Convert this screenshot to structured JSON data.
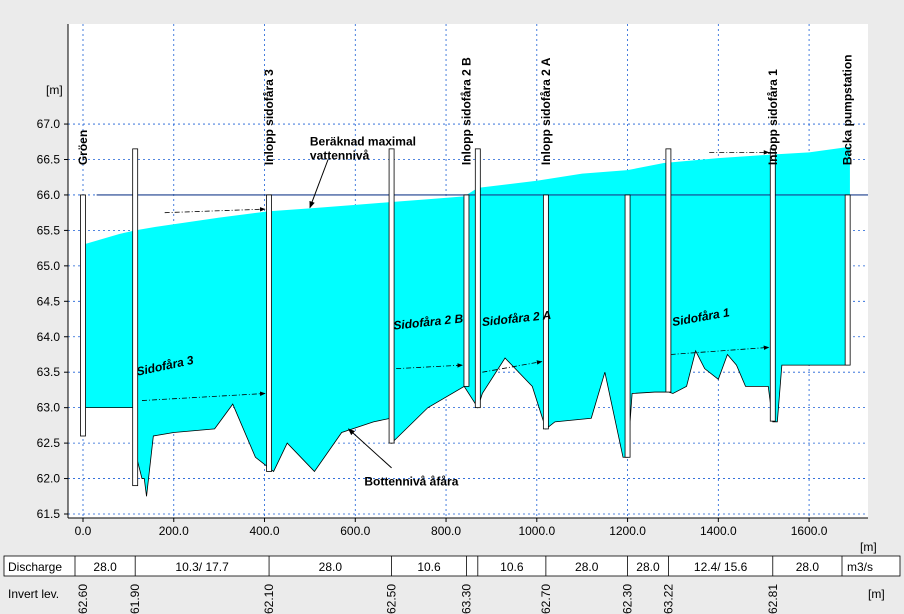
{
  "chart_data": {
    "type": "area",
    "x_unit": "[m]",
    "y_unit": "[m]",
    "xlim": [
      -30,
      1740
    ],
    "ylim": [
      61.5,
      67.0
    ],
    "x_ticks": [
      "0.0",
      "200.0",
      "400.0",
      "600.0",
      "800.0",
      "1000.0",
      "1200.0",
      "1400.0",
      "1600.0"
    ],
    "x_tick_values": [
      0,
      200,
      400,
      600,
      800,
      1000,
      1200,
      1400,
      1600
    ],
    "y_ticks": [
      "61.5",
      "62.0",
      "62.5",
      "63.0",
      "63.5",
      "64.0",
      "64.5",
      "65.0",
      "65.5",
      "66.0",
      "66.5",
      "67.0"
    ],
    "y_tick_values": [
      61.5,
      62.0,
      62.5,
      63.0,
      63.5,
      64.0,
      64.5,
      65.0,
      65.5,
      66.0,
      66.5,
      67.0
    ],
    "grid": true,
    "reference_level": 66.0,
    "water_surface": {
      "x": [
        0,
        80,
        115,
        160,
        300,
        410,
        500,
        600,
        680,
        760,
        840,
        870,
        1000,
        1100,
        1200,
        1280,
        1400,
        1520,
        1600,
        1690
      ],
      "y": [
        65.3,
        65.45,
        65.5,
        65.55,
        65.68,
        65.77,
        65.81,
        65.86,
        65.9,
        65.94,
        65.98,
        66.1,
        66.2,
        66.3,
        66.35,
        66.45,
        66.52,
        66.57,
        66.6,
        66.68
      ]
    },
    "bed_profile": {
      "x": [
        0,
        80,
        115,
        118,
        130,
        135,
        140,
        155,
        200,
        290,
        330,
        380,
        420,
        450,
        510,
        570,
        640,
        678,
        680,
        760,
        840,
        860,
        870,
        880,
        930,
        990,
        1020,
        1040,
        1120,
        1150,
        1190,
        1200,
        1210,
        1260,
        1290,
        1300,
        1330,
        1350,
        1370,
        1400,
        1420,
        1440,
        1460,
        1510,
        1520,
        1530,
        1540,
        1560,
        1600,
        1690
      ],
      "y": [
        63.0,
        63.0,
        63.0,
        62.3,
        62.0,
        62.0,
        61.75,
        62.6,
        62.65,
        62.7,
        63.05,
        62.3,
        62.1,
        62.5,
        62.1,
        62.65,
        62.8,
        62.85,
        62.5,
        63.0,
        63.3,
        63.1,
        63.0,
        63.2,
        63.7,
        63.3,
        62.7,
        62.8,
        62.85,
        63.5,
        62.3,
        62.3,
        63.2,
        63.22,
        63.22,
        63.2,
        63.3,
        63.8,
        63.55,
        63.4,
        63.75,
        63.6,
        63.3,
        63.3,
        62.8,
        62.8,
        63.6,
        63.6,
        63.6,
        63.6
      ]
    },
    "structures": [
      {
        "x": 0,
        "top": 66.0,
        "bottom": 62.6
      },
      {
        "x": 115,
        "top": 66.65,
        "bottom": 61.9
      },
      {
        "x": 410,
        "top": 66.0,
        "bottom": 62.1
      },
      {
        "x": 680,
        "top": 66.65,
        "bottom": 62.5
      },
      {
        "x": 845,
        "top": 66.0,
        "bottom": 63.3
      },
      {
        "x": 870,
        "top": 66.65,
        "bottom": 63.0
      },
      {
        "x": 1020,
        "top": 66.0,
        "bottom": 62.7
      },
      {
        "x": 1200,
        "top": 66.0,
        "bottom": 62.3
      },
      {
        "x": 1290,
        "top": 66.65,
        "bottom": 63.22
      },
      {
        "x": 1520,
        "top": 66.65,
        "bottom": 62.81
      },
      {
        "x": 1685,
        "top": 66.0,
        "bottom": 63.6
      }
    ],
    "station_labels": [
      {
        "x": 0,
        "text": "Gröen"
      },
      {
        "x": 410,
        "text": "Inlopp sidofåra 3"
      },
      {
        "x": 845,
        "text": "Inlopp sidofåra 2 B"
      },
      {
        "x": 1020,
        "text": "Inlopp sidofåra 2 A"
      },
      {
        "x": 1520,
        "text": "Inlopp sidofåra 1"
      },
      {
        "x": 1685,
        "text": "Backa pumpstation"
      }
    ],
    "side_channels": [
      {
        "text": "Sidofåra 3",
        "x": 120,
        "y": 63.45,
        "angle": -12,
        "arrow_from": [
          130,
          63.1
        ],
        "arrow_to": [
          410,
          63.2
        ],
        "top_from": [
          180,
          65.75
        ],
        "top_to": [
          410,
          65.8
        ]
      },
      {
        "text": "Sidofåra 2 B",
        "x": 685,
        "y": 64.1,
        "angle": -6,
        "arrow_from": [
          690,
          63.55
        ],
        "arrow_to": [
          845,
          63.6
        ]
      },
      {
        "text": "Sidofåra 2 A",
        "x": 880,
        "y": 64.15,
        "angle": -6,
        "arrow_from": [
          880,
          63.5
        ],
        "arrow_to": [
          1020,
          63.65
        ]
      },
      {
        "text": "Sidofåra 1",
        "x": 1300,
        "y": 64.15,
        "angle": -10,
        "arrow_from": [
          1295,
          63.75
        ],
        "arrow_to": [
          1520,
          63.85
        ],
        "top_from": [
          1380,
          66.6
        ],
        "top_to": [
          1520,
          66.6
        ]
      }
    ],
    "annotations": [
      {
        "text1": "Beräknad maximal",
        "text2": "vattennivå",
        "x": 500,
        "y": 66.7,
        "arrow_from": [
          540,
          66.5
        ],
        "arrow_to": [
          500,
          65.82
        ]
      },
      {
        "text1": "Bottennivå åfåra",
        "text2": "",
        "x": 620,
        "y": 61.9,
        "arrow_from": [
          680,
          62.15
        ],
        "arrow_to": [
          585,
          62.7
        ]
      }
    ]
  },
  "table": {
    "discharge_label": "Discharge",
    "discharge_unit": "m3/s",
    "discharge_cells": [
      {
        "from": -30,
        "to": 115,
        "value": "28.0"
      },
      {
        "from": 115,
        "to": 410,
        "value": "10.3/ 17.7"
      },
      {
        "from": 410,
        "to": 680,
        "value": "28.0"
      },
      {
        "from": 680,
        "to": 845,
        "value": "10.6"
      },
      {
        "from": 845,
        "to": 870,
        "value": ""
      },
      {
        "from": 870,
        "to": 1020,
        "value": "10.6"
      },
      {
        "from": 1020,
        "to": 1200,
        "value": "28.0"
      },
      {
        "from": 1200,
        "to": 1290,
        "value": "28.0"
      },
      {
        "from": 1290,
        "to": 1520,
        "value": "12.4/ 15.6"
      },
      {
        "from": 1520,
        "to": 1740,
        "value": "28.0"
      }
    ],
    "invert_label": "Invert lev.",
    "invert_unit": "[m]",
    "invert_values": [
      {
        "x": 0,
        "value": "62.60"
      },
      {
        "x": 115,
        "value": "61.90"
      },
      {
        "x": 410,
        "value": "62.10"
      },
      {
        "x": 680,
        "value": "62.50"
      },
      {
        "x": 845,
        "value": "63.30"
      },
      {
        "x": 1020,
        "value": "62.70"
      },
      {
        "x": 1200,
        "value": "62.30"
      },
      {
        "x": 1290,
        "value": "63.22"
      },
      {
        "x": 1520,
        "value": "62.81"
      }
    ]
  },
  "colors": {
    "water": "#00ffff",
    "line": "#000000",
    "grid": "#1a5fd6",
    "plot_bg": "#ffffff",
    "page_bg": "#ebebeb"
  }
}
